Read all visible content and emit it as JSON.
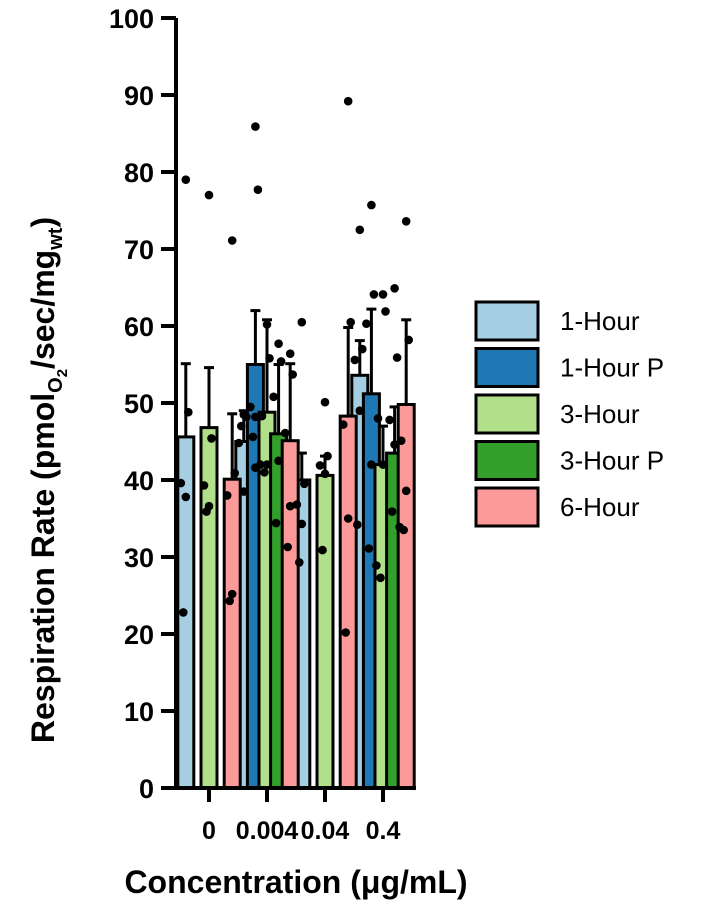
{
  "chart_data": {
    "type": "bar",
    "title": "",
    "xlabel": "Concentration (μg/mL)",
    "ylabel": {
      "prefix": "Respiration Rate (pmol",
      "sub1": "O",
      "sub1b": "2",
      "mid": "/sec/mg",
      "sub2": "wt",
      "suffix": ")"
    },
    "ylim": [
      0,
      100
    ],
    "yticks": [
      "0",
      "10",
      "20",
      "30",
      "40",
      "50",
      "60",
      "70",
      "80",
      "90",
      "100"
    ],
    "categories": [
      "0",
      "0.004",
      "0.04",
      "0.4"
    ],
    "legend_position": "right",
    "series": [
      {
        "name": "1-Hour",
        "color": "#a6cee3",
        "values": [
          45.6,
          45.0,
          40.0,
          53.6
        ],
        "errors": [
          9.5,
          4.0,
          3.5,
          4.5
        ],
        "points": [
          [
            79.0,
            48.8,
            39.6,
            37.8,
            22.8
          ],
          [
            48.5,
            48.2,
            44.8,
            38.5,
            47.0
          ],
          [
            60.5,
            39.5,
            36.8,
            34.3,
            29.3
          ],
          [
            72.5,
            57.0,
            55.6,
            49.0,
            34.2
          ]
        ]
      },
      {
        "name": "1-Hour P",
        "color": "#1f78b4",
        "values": [
          null,
          55.0,
          null,
          51.2
        ],
        "errors": [
          null,
          7.0,
          null,
          11.0
        ],
        "points": [
          [],
          [
            85.9,
            77.7,
            49.5,
            48.2,
            45.6,
            42.0,
            41.6
          ],
          [],
          [
            75.7,
            64.1,
            60.3,
            42.0,
            31.1,
            28.9
          ]
        ]
      },
      {
        "name": "3-Hour",
        "color": "#b2df8a",
        "values": [
          46.8,
          48.8,
          40.6,
          42.0
        ],
        "errors": [
          7.8,
          12.0,
          2.5,
          5.0
        ],
        "points": [
          [
            77.0,
            45.4,
            39.3,
            36.6,
            35.9
          ],
          [
            60.2,
            55.8,
            48.3,
            42.0,
            41.0
          ],
          [
            50.1,
            43.1,
            41.9,
            40.8,
            30.9
          ],
          [
            64.1,
            61.9,
            48.0,
            42.0,
            27.3
          ]
        ]
      },
      {
        "name": "3-Hour P",
        "color": "#33a02c",
        "values": [
          null,
          46.0,
          null,
          43.5
        ],
        "errors": [
          null,
          9.0,
          null,
          6.0
        ],
        "points": [
          [],
          [
            57.7,
            55.4,
            50.8,
            42.5,
            34.4
          ],
          [],
          [
            64.9,
            55.9,
            47.8,
            44.6,
            35.9,
            33.9
          ]
        ]
      },
      {
        "name": "6-Hour",
        "color": "#fb9a99",
        "values": [
          40.1,
          45.1,
          48.3,
          49.8
        ],
        "errors": [
          8.5,
          10.0,
          11.5,
          11.0
        ],
        "points": [
          [
            71.1,
            40.9,
            38.0,
            25.2,
            24.3
          ],
          [
            56.4,
            53.7,
            46.1,
            36.6,
            31.3
          ],
          [
            89.2,
            60.5,
            47.2,
            35.0,
            20.2
          ],
          [
            73.6,
            58.2,
            45.1,
            38.6,
            33.5
          ]
        ]
      }
    ]
  }
}
